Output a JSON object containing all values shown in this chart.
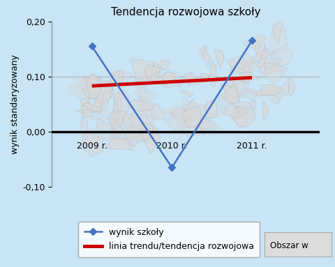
{
  "title": "Tendencja rozwojowa szkoły",
  "ylabel": "wynik standaryzowany",
  "x_labels": [
    "2009 r.",
    "2010 r.",
    "2011 r."
  ],
  "x_values": [
    2009,
    2010,
    2011
  ],
  "blue_line_y": [
    0.155,
    -0.065,
    0.165
  ],
  "red_line_x": [
    2009,
    2011
  ],
  "red_line_y": [
    0.083,
    0.098
  ],
  "ylim": [
    -0.1,
    0.2
  ],
  "xlim": [
    2008.5,
    2011.85
  ],
  "yticks": [
    -0.1,
    0.0,
    0.1,
    0.2
  ],
  "ytick_labels": [
    "-0,10",
    "0,00",
    "0,10",
    "0,20"
  ],
  "bg_color": "#c8e4f5",
  "blue_color": "#4472c4",
  "red_color": "#cc0000",
  "legend_entries": [
    "wynik szkoły",
    "linia trendu/tendencja rozwojowa"
  ]
}
